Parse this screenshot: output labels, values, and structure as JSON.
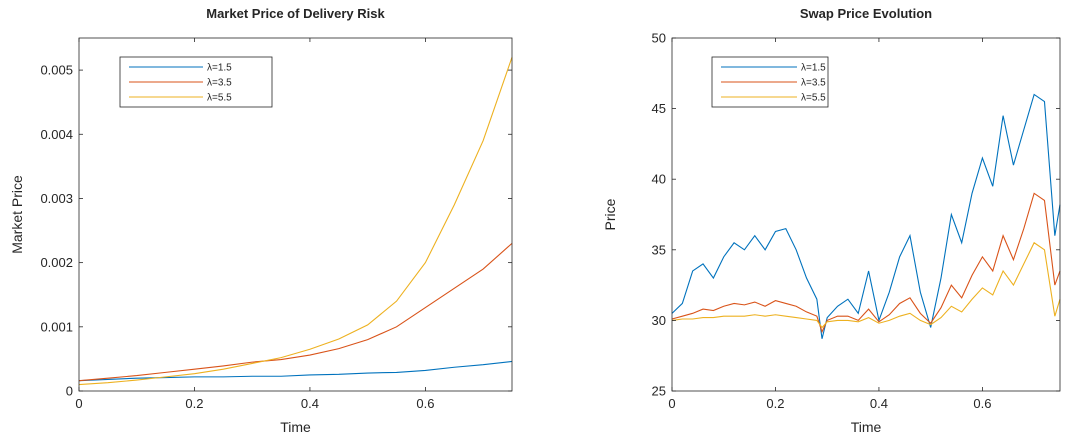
{
  "chart_data": [
    {
      "type": "line",
      "title": "Market Price of Delivery Risk",
      "xlabel": "Time",
      "ylabel": "Market Price",
      "xlim": [
        0,
        0.75
      ],
      "ylim": [
        0,
        0.0055
      ],
      "xticks": [
        0,
        0.2,
        0.4,
        0.6
      ],
      "xtick_labels": [
        "0",
        "0.2",
        "0.4",
        "0.6"
      ],
      "yticks": [
        0,
        0.001,
        0.002,
        0.003,
        0.004,
        0.005
      ],
      "ytick_labels": [
        "0",
        "0.001",
        "0.002",
        "0.003",
        "0.004",
        "0.005"
      ],
      "legend_position": "top-left",
      "grid": false,
      "series": [
        {
          "name": "λ=1.5",
          "color": "#0072BD",
          "x": [
            0,
            0.05,
            0.1,
            0.15,
            0.2,
            0.25,
            0.3,
            0.35,
            0.4,
            0.45,
            0.5,
            0.55,
            0.6,
            0.65,
            0.7,
            0.75
          ],
          "y": [
            0.00016,
            0.00018,
            0.0002,
            0.00021,
            0.00022,
            0.00022,
            0.00023,
            0.00023,
            0.00025,
            0.00026,
            0.00028,
            0.00029,
            0.00032,
            0.00037,
            0.00041,
            0.00046
          ]
        },
        {
          "name": "λ=3.5",
          "color": "#D95319",
          "x": [
            0,
            0.05,
            0.1,
            0.15,
            0.2,
            0.25,
            0.3,
            0.35,
            0.4,
            0.45,
            0.5,
            0.55,
            0.6,
            0.65,
            0.7,
            0.75
          ],
          "y": [
            0.00016,
            0.0002,
            0.00024,
            0.00029,
            0.00034,
            0.00039,
            0.00045,
            0.00049,
            0.00056,
            0.00066,
            0.0008,
            0.001,
            0.0013,
            0.0016,
            0.0019,
            0.0023
          ]
        },
        {
          "name": "λ=5.5",
          "color": "#EDB120",
          "x": [
            0,
            0.05,
            0.1,
            0.15,
            0.2,
            0.25,
            0.3,
            0.35,
            0.4,
            0.45,
            0.5,
            0.55,
            0.6,
            0.65,
            0.7,
            0.75
          ],
          "y": [
            0.0001,
            0.00013,
            0.00017,
            0.00022,
            0.00027,
            0.00034,
            0.00043,
            0.00052,
            0.00065,
            0.00081,
            0.00103,
            0.0014,
            0.002,
            0.0029,
            0.0039,
            0.0052
          ]
        }
      ]
    },
    {
      "type": "line",
      "title": "Swap Price Evolution",
      "xlabel": "Time",
      "ylabel": "Price",
      "xlim": [
        0,
        0.75
      ],
      "ylim": [
        25,
        50
      ],
      "xticks": [
        0,
        0.2,
        0.4,
        0.6
      ],
      "xtick_labels": [
        "0",
        "0.2",
        "0.4",
        "0.6"
      ],
      "yticks": [
        25,
        30,
        35,
        40,
        45,
        50
      ],
      "ytick_labels": [
        "25",
        "30",
        "35",
        "40",
        "45",
        "50"
      ],
      "legend_position": "top-left",
      "grid": false,
      "series": [
        {
          "name": "λ=1.5",
          "color": "#0072BD",
          "x": [
            0,
            0.02,
            0.04,
            0.06,
            0.08,
            0.1,
            0.12,
            0.14,
            0.16,
            0.18,
            0.2,
            0.22,
            0.24,
            0.26,
            0.28,
            0.29,
            0.3,
            0.32,
            0.34,
            0.36,
            0.38,
            0.4,
            0.42,
            0.44,
            0.46,
            0.48,
            0.5,
            0.52,
            0.54,
            0.56,
            0.58,
            0.6,
            0.62,
            0.64,
            0.66,
            0.68,
            0.7,
            0.72,
            0.74,
            0.75
          ],
          "y": [
            30.5,
            31.2,
            33.5,
            34,
            33,
            34.5,
            35.5,
            35,
            36,
            35,
            36.3,
            36.5,
            35,
            33,
            31.5,
            28.7,
            30.2,
            31,
            31.5,
            30.5,
            33.5,
            30,
            32,
            34.5,
            36,
            32,
            29.5,
            33,
            37.5,
            35.5,
            39,
            41.5,
            39.5,
            44.5,
            41,
            43.5,
            46,
            45.5,
            36,
            38.2
          ]
        },
        {
          "name": "λ=3.5",
          "color": "#D95319",
          "x": [
            0,
            0.02,
            0.04,
            0.06,
            0.08,
            0.1,
            0.12,
            0.14,
            0.16,
            0.18,
            0.2,
            0.22,
            0.24,
            0.26,
            0.28,
            0.29,
            0.3,
            0.32,
            0.34,
            0.36,
            0.38,
            0.4,
            0.42,
            0.44,
            0.46,
            0.48,
            0.5,
            0.52,
            0.54,
            0.56,
            0.58,
            0.6,
            0.62,
            0.64,
            0.66,
            0.68,
            0.7,
            0.72,
            0.74,
            0.75
          ],
          "y": [
            30.1,
            30.3,
            30.5,
            30.8,
            30.7,
            31,
            31.2,
            31.1,
            31.3,
            31.0,
            31.4,
            31.2,
            31.0,
            30.6,
            30.3,
            29.2,
            30.0,
            30.3,
            30.3,
            30.0,
            30.8,
            29.9,
            30.4,
            31.2,
            31.6,
            30.5,
            29.8,
            30.9,
            32.5,
            31.6,
            33.2,
            34.5,
            33.5,
            36.0,
            34.3,
            36.5,
            39.0,
            38.5,
            32.5,
            33.5
          ]
        },
        {
          "name": "λ=5.5",
          "color": "#EDB120",
          "x": [
            0,
            0.02,
            0.04,
            0.06,
            0.08,
            0.1,
            0.12,
            0.14,
            0.16,
            0.18,
            0.2,
            0.22,
            0.24,
            0.26,
            0.28,
            0.29,
            0.3,
            0.32,
            0.34,
            0.36,
            0.38,
            0.4,
            0.42,
            0.44,
            0.46,
            0.48,
            0.5,
            0.52,
            0.54,
            0.56,
            0.58,
            0.6,
            0.62,
            0.64,
            0.66,
            0.68,
            0.7,
            0.72,
            0.74,
            0.75
          ],
          "y": [
            30.0,
            30.1,
            30.1,
            30.2,
            30.2,
            30.3,
            30.3,
            30.3,
            30.4,
            30.3,
            30.4,
            30.3,
            30.2,
            30.1,
            30.0,
            29.5,
            29.9,
            30.0,
            30.0,
            29.9,
            30.2,
            29.8,
            30.0,
            30.3,
            30.5,
            30.0,
            29.7,
            30.2,
            31.0,
            30.6,
            31.5,
            32.3,
            31.8,
            33.5,
            32.5,
            34.0,
            35.5,
            35.0,
            30.3,
            31.5
          ]
        }
      ]
    }
  ]
}
